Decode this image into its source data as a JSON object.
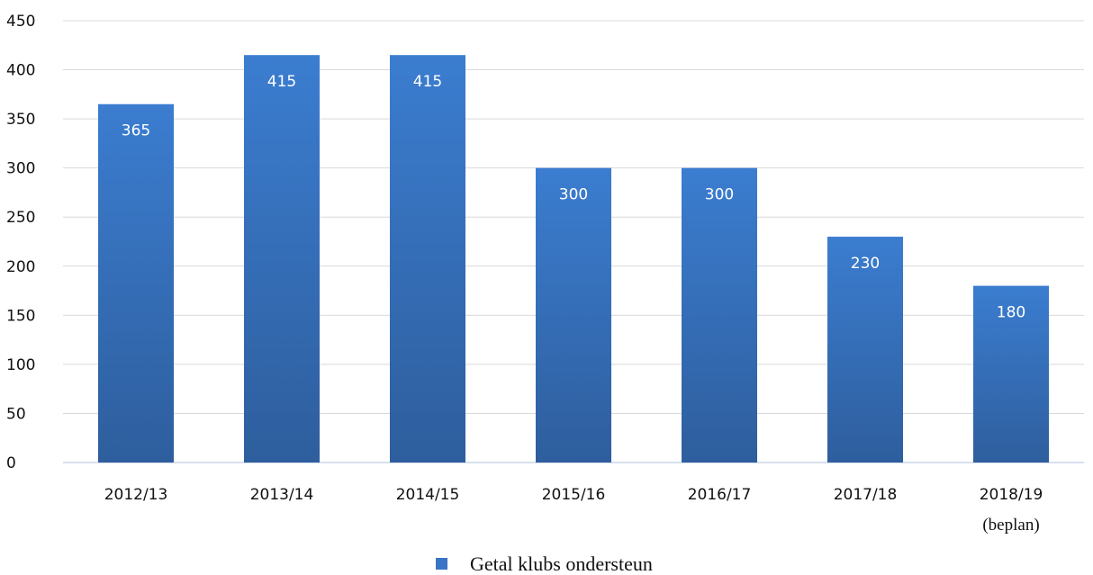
{
  "chart_data": {
    "type": "bar",
    "categories": [
      "2012/13",
      "2013/14",
      "2014/15",
      "2015/16",
      "2016/17",
      "2017/18",
      "2018/19"
    ],
    "category_sublabels": [
      "",
      "",
      "",
      "",
      "",
      "",
      "(beplan)"
    ],
    "series": [
      {
        "name": "Getal klubs ondersteun",
        "values": [
          365,
          415,
          415,
          300,
          300,
          230,
          180
        ],
        "color": "#3a74c4"
      }
    ],
    "title": "",
    "xlabel": "",
    "ylabel": "",
    "ylim": [
      0,
      450
    ],
    "yticks": [
      0,
      50,
      100,
      150,
      200,
      250,
      300,
      350,
      400,
      450
    ],
    "data_labels": true,
    "grid": true,
    "legend_position": "bottom",
    "colors": {
      "bar_top": "#3b7dd0",
      "bar_bottom": "#2e5e9d",
      "grid": "#d9d9d9",
      "axis": "#c9d6ea"
    }
  }
}
